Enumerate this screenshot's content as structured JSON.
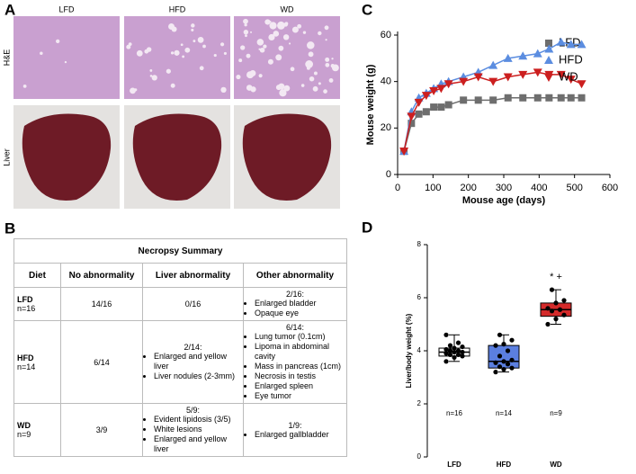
{
  "panel_labels": [
    "A",
    "B",
    "C",
    "D"
  ],
  "panel_a": {
    "columns": [
      "LFD",
      "HFD",
      "WD"
    ],
    "rows": [
      "H&E",
      "Liver"
    ]
  },
  "table": {
    "title": "Necropsy Summary",
    "header": [
      "Diet",
      "No abnormality",
      "Liver abnormality",
      "Other abnormality"
    ],
    "rows": [
      {
        "diet": "LFD",
        "n": "n=16",
        "no_abnormality": "14/16",
        "liver": {
          "count": "0/16",
          "items": []
        },
        "other": {
          "count": "2/16:",
          "items": [
            "Enlarged bladder",
            "Opaque eye"
          ]
        }
      },
      {
        "diet": "HFD",
        "n": "n=14",
        "no_abnormality": "6/14",
        "liver": {
          "count": "2/14:",
          "items": [
            "Enlarged and yellow liver",
            "Liver nodules (2-3mm)"
          ]
        },
        "other": {
          "count": "6/14:",
          "items": [
            "Lung tumor (0.1cm)",
            "Lipoma in abdominal cavity",
            "Mass in pancreas (1cm)",
            "Necrosis in testis",
            "Enlarged spleen",
            "Eye tumor"
          ]
        }
      },
      {
        "diet": "WD",
        "n": "n=9",
        "no_abnormality": "3/9",
        "liver": {
          "count": "5/9:",
          "items": [
            "Evident lipidosis (3/5)",
            "White lesions",
            "Enlarged and yellow liver"
          ]
        },
        "other": {
          "count": "1/9:",
          "items": [
            "Enlarged gallbladder"
          ]
        }
      }
    ]
  },
  "chart_data": [
    {
      "type": "line",
      "x_label": "Mouse age (days)",
      "y_label": "Mouse weight (g)",
      "x": [
        18,
        39,
        60,
        81,
        102,
        123,
        144,
        186,
        228,
        270,
        312,
        354,
        396,
        428,
        462,
        490,
        520
      ],
      "series": [
        {
          "name": "LFD",
          "color": "#6e6e6e",
          "marker": "square",
          "values": [
            10,
            22,
            26,
            27,
            29,
            29,
            30,
            32,
            32,
            32,
            33,
            33,
            33,
            33,
            33,
            33,
            33
          ]
        },
        {
          "name": "HFD",
          "color": "#5b8de0",
          "marker": "triangle-up",
          "values": [
            10,
            27,
            33,
            35,
            37,
            39,
            40,
            42,
            44,
            47,
            50,
            51,
            52,
            54,
            57,
            56,
            56
          ]
        },
        {
          "name": "WD",
          "color": "#cc1f1f",
          "marker": "triangle-down",
          "values": [
            10,
            25,
            31,
            34,
            36,
            37,
            39,
            40,
            42,
            40,
            42,
            43,
            44,
            43,
            43,
            41,
            39
          ]
        }
      ],
      "xlim": [
        0,
        600
      ],
      "xticks": [
        0,
        100,
        200,
        300,
        400,
        500,
        600
      ],
      "ylim": [
        0,
        60
      ],
      "yticks": [
        0,
        20,
        40,
        60
      ],
      "legend": "upper right"
    },
    {
      "type": "box",
      "y_label": "Liver/body weight (%)",
      "categories": [
        "LFD",
        "HFD",
        "WD"
      ],
      "boxes": [
        {
          "color": "#ffffff",
          "min": 3.6,
          "q1": 3.8,
          "median": 3.95,
          "q3": 4.1,
          "max": 4.6,
          "points": [
            3.6,
            3.75,
            3.8,
            3.85,
            3.85,
            3.9,
            3.95,
            3.95,
            4.0,
            4.0,
            4.05,
            4.1,
            4.15,
            4.2,
            4.3,
            4.6
          ]
        },
        {
          "color": "#5b7fe0",
          "min": 3.2,
          "q1": 3.35,
          "median": 3.6,
          "q3": 4.2,
          "max": 4.6,
          "points": [
            3.2,
            3.3,
            3.35,
            3.4,
            3.5,
            3.55,
            3.6,
            3.65,
            3.8,
            4.0,
            4.2,
            4.25,
            4.4,
            4.6
          ]
        },
        {
          "color": "#d42a2a",
          "min": 5.0,
          "q1": 5.3,
          "median": 5.55,
          "q3": 5.8,
          "max": 6.3,
          "points": [
            5.0,
            5.2,
            5.35,
            5.5,
            5.55,
            5.6,
            5.8,
            5.9,
            6.3
          ]
        }
      ],
      "n_labels": [
        "n=16",
        "n=14",
        "n=9"
      ],
      "significance": [
        null,
        null,
        "* +"
      ],
      "ylim": [
        0,
        8
      ],
      "yticks": [
        0,
        2,
        4,
        6,
        8
      ]
    }
  ]
}
